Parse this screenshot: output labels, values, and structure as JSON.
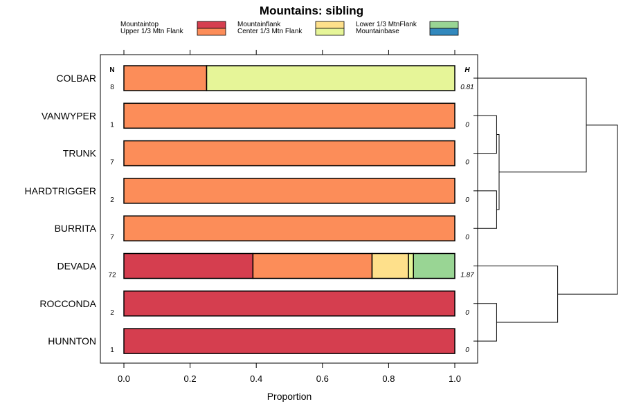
{
  "chart_data": {
    "type": "bar",
    "orientation": "horizontal",
    "stacked": true,
    "title": "Mountains: sibling",
    "xlabel": "Proportion",
    "ylabel": "",
    "xlim": [
      0,
      1
    ],
    "xticks": [
      "0.0",
      "0.2",
      "0.4",
      "0.6",
      "0.8",
      "1.0"
    ],
    "xtick_values": [
      0,
      0.2,
      0.4,
      0.6,
      0.8,
      1.0
    ],
    "n_header": "N",
    "h_header": "H",
    "legend": [
      {
        "name": "Mountaintop",
        "color": "#d53e4f"
      },
      {
        "name": "Upper 1/3 Mtn Flank",
        "color": "#fc8d59"
      },
      {
        "name": "Mountainflank",
        "color": "#fee08b"
      },
      {
        "name": "Center 1/3 Mtn Flank",
        "color": "#e6f598"
      },
      {
        "name": "Lower 1/3 MtnFlank",
        "color": "#99d594"
      },
      {
        "name": "Mountainbase",
        "color": "#3288bd"
      }
    ],
    "categories": [
      "COLBAR",
      "VANWYPER",
      "TRUNK",
      "HARDTRIGGER",
      "BURRITA",
      "DEVADA",
      "ROCCONDA",
      "HUNNTON"
    ],
    "n": [
      "8",
      "1",
      "7",
      "2",
      "7",
      "72",
      "2",
      "1"
    ],
    "h": [
      "0.81",
      "0",
      "0",
      "0",
      "0",
      "1.87",
      "0",
      "0"
    ],
    "series": [
      {
        "name": "Mountaintop",
        "values": [
          0,
          0,
          0,
          0,
          0,
          0.39,
          1.0,
          1.0
        ]
      },
      {
        "name": "Upper 1/3 Mtn Flank",
        "values": [
          0.25,
          1.0,
          1.0,
          1.0,
          1.0,
          0.36,
          0,
          0
        ]
      },
      {
        "name": "Mountainflank",
        "values": [
          0,
          0,
          0,
          0,
          0,
          0.11,
          0,
          0
        ]
      },
      {
        "name": "Center 1/3 Mtn Flank",
        "values": [
          0.75,
          0,
          0,
          0,
          0,
          0.015,
          0,
          0
        ]
      },
      {
        "name": "Lower 1/3 MtnFlank",
        "values": [
          0,
          0,
          0,
          0,
          0,
          0.125,
          0,
          0
        ]
      },
      {
        "name": "Mountainbase",
        "values": [
          0,
          0,
          0,
          0,
          0,
          0,
          0,
          0
        ]
      }
    ],
    "dendrogram": {
      "leaves": [
        "COLBAR",
        "VANWYPER",
        "TRUNK",
        "HARDTRIGGER",
        "BURRITA",
        "DEVADA",
        "ROCCONDA",
        "HUNNTON"
      ],
      "merges": [
        {
          "id": "m1",
          "children": [
            "VANWYPER",
            "TRUNK"
          ],
          "height": 0.03
        },
        {
          "id": "m2",
          "children": [
            "HARDTRIGGER",
            "BURRITA"
          ],
          "height": 0.03
        },
        {
          "id": "m3",
          "children": [
            "ROCCONDA",
            "HUNNTON"
          ],
          "height": 0.03
        },
        {
          "id": "m4",
          "children": [
            "m1",
            "m2"
          ],
          "height": 0.05
        },
        {
          "id": "m5",
          "children": [
            "COLBAR",
            "m4"
          ],
          "height": 0.75
        },
        {
          "id": "m6",
          "children": [
            "DEVADA",
            "m3"
          ],
          "height": 0.52
        },
        {
          "id": "m7",
          "children": [
            "m5",
            "m6"
          ],
          "height": 1.0
        }
      ]
    }
  }
}
